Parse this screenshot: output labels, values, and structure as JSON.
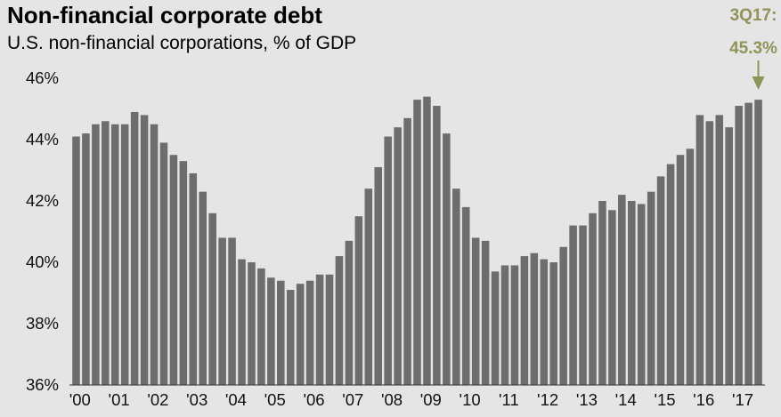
{
  "title": "Non-financial corporate debt",
  "subtitle": "U.S. non-financial corporations, % of GDP",
  "callout": {
    "line1": "3Q17:",
    "line2": "45.3%"
  },
  "colors": {
    "bar": "#6d6d6d",
    "callout": "#8d9558",
    "axis": "#333333",
    "background": "#e5e5e5"
  },
  "chart_data": {
    "type": "bar",
    "title": "Non-financial corporate debt",
    "subtitle": "U.S. non-financial corporations, % of GDP",
    "xlabel": "",
    "ylabel": "",
    "ylim": [
      36,
      46
    ],
    "y_ticks": [
      36,
      38,
      40,
      42,
      44,
      46
    ],
    "y_tick_labels": [
      "36%",
      "38%",
      "40%",
      "42%",
      "44%",
      "46%"
    ],
    "x_tick_labels": [
      "'00",
      "'01",
      "'02",
      "'03",
      "'04",
      "'05",
      "'06",
      "'07",
      "'08",
      "'09",
      "'10",
      "'11",
      "'12",
      "'13",
      "'14",
      "'15",
      "'16",
      "'17"
    ],
    "grid": false,
    "frequency": "quarterly",
    "categories": [
      "1Q00",
      "2Q00",
      "3Q00",
      "4Q00",
      "1Q01",
      "2Q01",
      "3Q01",
      "4Q01",
      "1Q02",
      "2Q02",
      "3Q02",
      "4Q02",
      "1Q03",
      "2Q03",
      "3Q03",
      "4Q03",
      "1Q04",
      "2Q04",
      "3Q04",
      "4Q04",
      "1Q05",
      "2Q05",
      "3Q05",
      "4Q05",
      "1Q06",
      "2Q06",
      "3Q06",
      "4Q06",
      "1Q07",
      "2Q07",
      "3Q07",
      "4Q07",
      "1Q08",
      "2Q08",
      "3Q08",
      "4Q08",
      "1Q09",
      "2Q09",
      "3Q09",
      "4Q09",
      "1Q10",
      "2Q10",
      "3Q10",
      "4Q10",
      "1Q11",
      "2Q11",
      "3Q11",
      "4Q11",
      "1Q12",
      "2Q12",
      "3Q12",
      "4Q12",
      "1Q13",
      "2Q13",
      "3Q13",
      "4Q13",
      "1Q14",
      "2Q14",
      "3Q14",
      "4Q14",
      "1Q15",
      "2Q15",
      "3Q15",
      "4Q15",
      "1Q16",
      "2Q16",
      "3Q16",
      "4Q16",
      "1Q17",
      "2Q17",
      "3Q17"
    ],
    "values": [
      44.1,
      44.2,
      44.5,
      44.6,
      44.5,
      44.5,
      44.9,
      44.8,
      44.5,
      43.9,
      43.5,
      43.3,
      42.9,
      42.3,
      41.6,
      40.8,
      40.8,
      40.1,
      40.0,
      39.8,
      39.5,
      39.4,
      39.1,
      39.3,
      39.4,
      39.6,
      39.6,
      40.2,
      40.7,
      41.5,
      42.4,
      43.1,
      44.1,
      44.4,
      44.7,
      45.3,
      45.4,
      45.1,
      44.2,
      42.4,
      41.8,
      40.8,
      40.7,
      39.7,
      39.9,
      39.9,
      40.2,
      40.3,
      40.1,
      40.0,
      40.5,
      41.2,
      41.2,
      41.6,
      42.0,
      41.7,
      42.2,
      42.0,
      41.9,
      42.3,
      42.8,
      43.2,
      43.5,
      43.7,
      44.8,
      44.6,
      44.8,
      44.4,
      45.1,
      45.2,
      45.3
    ]
  }
}
